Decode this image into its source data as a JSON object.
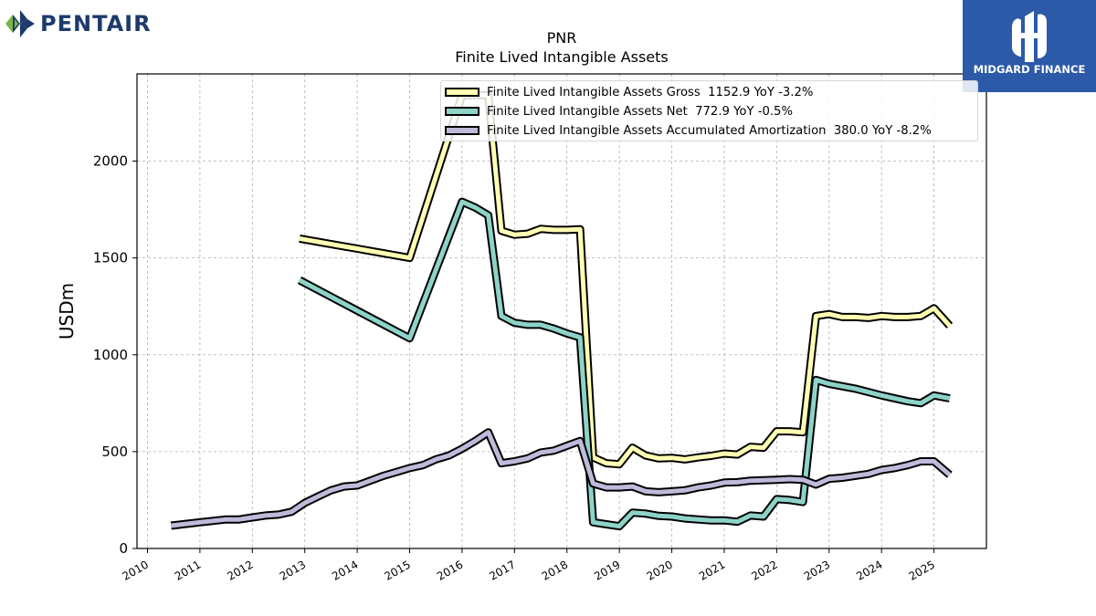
{
  "brand": {
    "company_name": "PENTAIR",
    "partner_name": "MIDGARD FINANCE",
    "company_color": "#1d3a6b",
    "partner_color": "#2c5aa8"
  },
  "header": {
    "ticker": "PNR",
    "title": "Finite Lived Intangible Assets"
  },
  "legend": [
    {
      "label": "Finite Lived Intangible Assets Gross  1152.9 YoY -3.2%",
      "color": "#ffffb3"
    },
    {
      "label": "Finite Lived Intangible Assets Net  772.9 YoY -0.5%",
      "color": "#8dd3c7"
    },
    {
      "label": "Finite Lived Intangible Assets Accumulated Amortization  380.0 YoY -8.2%",
      "color": "#bebada"
    }
  ],
  "chart_data": {
    "type": "line",
    "title": "PNR\nFinite Lived Intangible Assets",
    "xlabel": "",
    "ylabel": "USDm",
    "xlim": [
      2009.8,
      2026.0
    ],
    "ylim": [
      0,
      2450
    ],
    "x_ticks": [
      "2010",
      "2011",
      "2012",
      "2013",
      "2014",
      "2015",
      "2016",
      "2017",
      "2018",
      "2019",
      "2020",
      "2021",
      "2022",
      "2023",
      "2024",
      "2025"
    ],
    "y_ticks": [
      "0",
      "500",
      "1000",
      "1500",
      "2000"
    ],
    "grid": true,
    "legend_position": "top-center",
    "series": [
      {
        "name": "Finite Lived Intangible Assets Gross",
        "color": "#ffffb3",
        "points": [
          [
            2012.9,
            1600
          ],
          [
            2015.0,
            1500
          ],
          [
            2016.0,
            2340
          ],
          [
            2016.5,
            2340
          ],
          [
            2016.75,
            1640
          ],
          [
            2017.0,
            1620
          ],
          [
            2017.25,
            1625
          ],
          [
            2017.5,
            1650
          ],
          [
            2017.75,
            1645
          ],
          [
            2018.0,
            1645
          ],
          [
            2018.25,
            1648
          ],
          [
            2018.5,
            470
          ],
          [
            2018.75,
            440
          ],
          [
            2019.0,
            435
          ],
          [
            2019.25,
            520
          ],
          [
            2019.5,
            480
          ],
          [
            2019.75,
            465
          ],
          [
            2020.0,
            468
          ],
          [
            2020.25,
            460
          ],
          [
            2020.5,
            470
          ],
          [
            2020.75,
            478
          ],
          [
            2021.0,
            490
          ],
          [
            2021.25,
            485
          ],
          [
            2021.5,
            525
          ],
          [
            2021.75,
            520
          ],
          [
            2022.0,
            605
          ],
          [
            2022.25,
            605
          ],
          [
            2022.5,
            600
          ],
          [
            2022.75,
            1200
          ],
          [
            2023.0,
            1210
          ],
          [
            2023.25,
            1195
          ],
          [
            2023.5,
            1195
          ],
          [
            2023.75,
            1190
          ],
          [
            2024.0,
            1200
          ],
          [
            2024.25,
            1195
          ],
          [
            2024.5,
            1195
          ],
          [
            2024.75,
            1200
          ],
          [
            2025.0,
            1240
          ],
          [
            2025.3,
            1150
          ]
        ]
      },
      {
        "name": "Finite Lived Intangible Assets Net",
        "color": "#8dd3c7",
        "points": [
          [
            2012.9,
            1385
          ],
          [
            2015.0,
            1085
          ],
          [
            2016.0,
            1790
          ],
          [
            2016.25,
            1760
          ],
          [
            2016.5,
            1720
          ],
          [
            2016.75,
            1200
          ],
          [
            2017.0,
            1165
          ],
          [
            2017.25,
            1155
          ],
          [
            2017.5,
            1155
          ],
          [
            2017.75,
            1135
          ],
          [
            2018.0,
            1110
          ],
          [
            2018.25,
            1090
          ],
          [
            2018.5,
            135
          ],
          [
            2018.75,
            125
          ],
          [
            2019.0,
            115
          ],
          [
            2019.25,
            185
          ],
          [
            2019.5,
            180
          ],
          [
            2019.75,
            168
          ],
          [
            2020.0,
            165
          ],
          [
            2020.25,
            155
          ],
          [
            2020.5,
            150
          ],
          [
            2020.75,
            145
          ],
          [
            2021.0,
            145
          ],
          [
            2021.25,
            138
          ],
          [
            2021.5,
            170
          ],
          [
            2021.75,
            165
          ],
          [
            2022.0,
            255
          ],
          [
            2022.25,
            250
          ],
          [
            2022.5,
            240
          ],
          [
            2022.75,
            870
          ],
          [
            2023.0,
            850
          ],
          [
            2023.5,
            825
          ],
          [
            2024.0,
            790
          ],
          [
            2024.5,
            760
          ],
          [
            2024.75,
            750
          ],
          [
            2025.0,
            790
          ],
          [
            2025.3,
            775
          ]
        ]
      },
      {
        "name": "Finite Lived Intangible Assets Accumulated Amortization",
        "color": "#bebada",
        "points": [
          [
            2010.45,
            118
          ],
          [
            2011.0,
            135
          ],
          [
            2011.5,
            150
          ],
          [
            2011.75,
            150
          ],
          [
            2012.0,
            160
          ],
          [
            2012.25,
            170
          ],
          [
            2012.5,
            175
          ],
          [
            2012.75,
            190
          ],
          [
            2013.0,
            235
          ],
          [
            2013.25,
            268
          ],
          [
            2013.5,
            300
          ],
          [
            2013.75,
            320
          ],
          [
            2014.0,
            325
          ],
          [
            2014.25,
            350
          ],
          [
            2014.5,
            375
          ],
          [
            2014.75,
            395
          ],
          [
            2015.0,
            415
          ],
          [
            2015.25,
            430
          ],
          [
            2015.5,
            460
          ],
          [
            2015.75,
            480
          ],
          [
            2016.0,
            515
          ],
          [
            2016.25,
            555
          ],
          [
            2016.5,
            600
          ],
          [
            2016.75,
            440
          ],
          [
            2017.0,
            450
          ],
          [
            2017.25,
            465
          ],
          [
            2017.5,
            495
          ],
          [
            2017.75,
            505
          ],
          [
            2018.0,
            530
          ],
          [
            2018.25,
            555
          ],
          [
            2018.5,
            335
          ],
          [
            2018.75,
            315
          ],
          [
            2019.0,
            315
          ],
          [
            2019.25,
            320
          ],
          [
            2019.5,
            295
          ],
          [
            2019.75,
            290
          ],
          [
            2020.0,
            295
          ],
          [
            2020.25,
            300
          ],
          [
            2020.5,
            315
          ],
          [
            2020.75,
            325
          ],
          [
            2021.0,
            340
          ],
          [
            2021.25,
            342
          ],
          [
            2021.5,
            350
          ],
          [
            2021.75,
            352
          ],
          [
            2022.0,
            355
          ],
          [
            2022.25,
            358
          ],
          [
            2022.5,
            355
          ],
          [
            2022.75,
            330
          ],
          [
            2023.0,
            360
          ],
          [
            2023.25,
            365
          ],
          [
            2023.5,
            375
          ],
          [
            2023.75,
            385
          ],
          [
            2024.0,
            405
          ],
          [
            2024.25,
            415
          ],
          [
            2024.5,
            430
          ],
          [
            2024.75,
            450
          ],
          [
            2025.0,
            450
          ],
          [
            2025.3,
            380
          ]
        ]
      }
    ]
  }
}
